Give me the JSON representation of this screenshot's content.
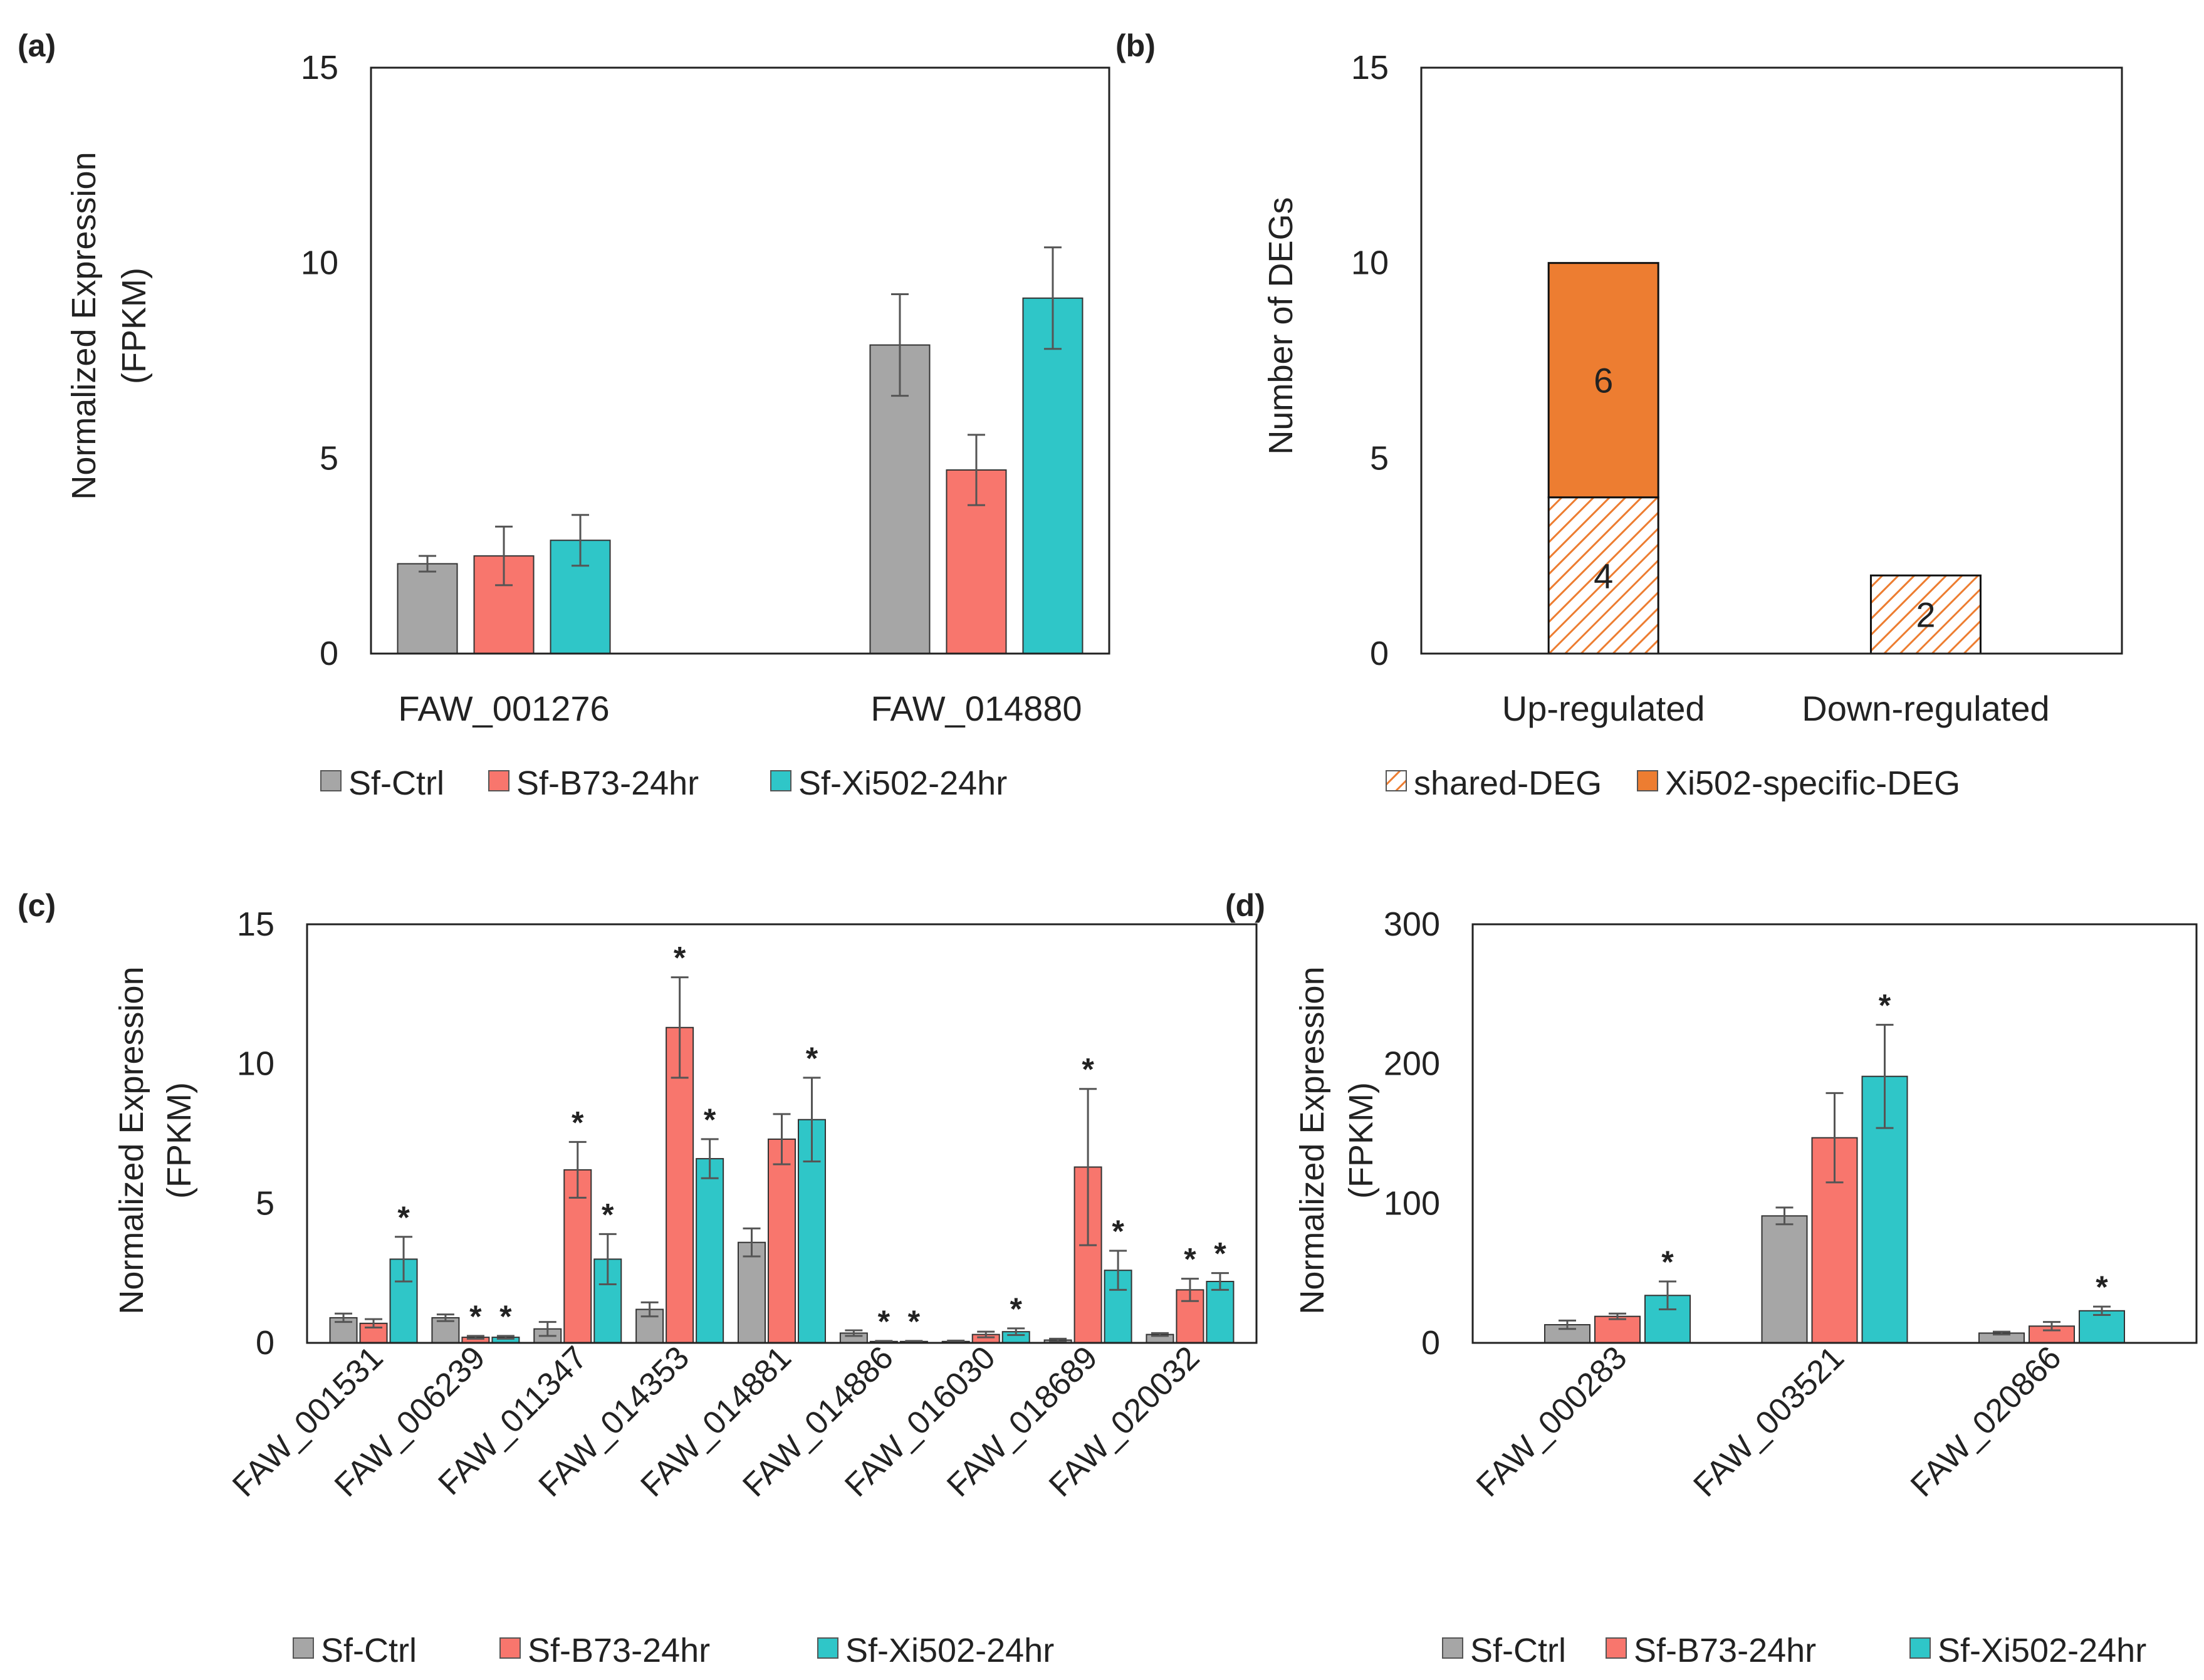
{
  "colors": {
    "ctrl": "#a6a6a6",
    "b73": "#f8766d",
    "xi502": "#2fc6c8",
    "xi_specific": "#ed7d31",
    "shared_hatch": "#ed7d31",
    "frame": "#222222",
    "error_bar": "#555555"
  },
  "chart_data": [
    {
      "id": "a",
      "panel_label": "(a)",
      "type": "bar",
      "ylabel": [
        "Normalized Expression",
        "(FPKM)"
      ],
      "ylim": [
        0,
        15
      ],
      "yticks": [
        0,
        5,
        10,
        15
      ],
      "categories": [
        "FAW_001276",
        "FAW_014880"
      ],
      "series": [
        {
          "name": "Sf-Ctrl",
          "color_key": "ctrl",
          "values": [
            2.3,
            7.9
          ],
          "errors": [
            0.2,
            1.3
          ]
        },
        {
          "name": "Sf-B73-24hr",
          "color_key": "b73",
          "values": [
            2.5,
            4.7
          ],
          "errors": [
            0.75,
            0.9
          ]
        },
        {
          "name": "Sf-Xi502-24hr",
          "color_key": "xi502",
          "values": [
            2.9,
            9.1
          ],
          "errors": [
            0.65,
            1.3
          ]
        }
      ],
      "legend": [
        "Sf-Ctrl",
        "Sf-B73-24hr",
        "Sf-Xi502-24hr"
      ]
    },
    {
      "id": "b",
      "panel_label": "(b)",
      "type": "bar",
      "stacked": true,
      "ylabel": [
        "Number of DEGs"
      ],
      "ylim": [
        0,
        15
      ],
      "yticks": [
        0,
        5,
        10,
        15
      ],
      "categories": [
        "Up-regulated",
        "Down-regulated"
      ],
      "series": [
        {
          "name": "shared-DEG",
          "pattern": "hatch",
          "values": [
            4,
            2
          ],
          "labels": [
            "4",
            "2"
          ]
        },
        {
          "name": "Xi502-specific-DEG",
          "color_key": "xi_specific",
          "values": [
            6,
            0
          ],
          "labels": [
            "6",
            ""
          ]
        }
      ],
      "legend": [
        "shared-DEG",
        "Xi502-specific-DEG"
      ]
    },
    {
      "id": "c",
      "panel_label": "(c)",
      "type": "bar",
      "ylabel": [
        "Normalized Expression",
        "(FPKM)"
      ],
      "ylim": [
        0,
        15
      ],
      "yticks": [
        0,
        5,
        10,
        15
      ],
      "categories": [
        "FAW_001531",
        "FAW_006239",
        "FAW_011347",
        "FAW_014353",
        "FAW_014881",
        "FAW_014886",
        "FAW_016030",
        "FAW_018689",
        "FAW_020032"
      ],
      "series": [
        {
          "name": "Sf-Ctrl",
          "color_key": "ctrl",
          "values": [
            0.9,
            0.9,
            0.5,
            1.2,
            3.6,
            0.35,
            0.05,
            0.1,
            0.3
          ],
          "errors": [
            0.15,
            0.12,
            0.25,
            0.25,
            0.5,
            0.1,
            0.03,
            0.05,
            0.05
          ],
          "sig": [
            false,
            false,
            false,
            false,
            false,
            false,
            false,
            false,
            false
          ]
        },
        {
          "name": "Sf-B73-24hr",
          "color_key": "b73",
          "values": [
            0.7,
            0.2,
            6.2,
            11.3,
            7.3,
            0.05,
            0.3,
            6.3,
            1.9
          ],
          "errors": [
            0.15,
            0.05,
            1.0,
            1.8,
            0.9,
            0.02,
            0.1,
            2.8,
            0.4
          ],
          "sig": [
            false,
            true,
            true,
            true,
            false,
            true,
            false,
            true,
            true
          ]
        },
        {
          "name": "Sf-Xi502-24hr",
          "color_key": "xi502",
          "values": [
            3.0,
            0.2,
            3.0,
            6.6,
            8.0,
            0.05,
            0.4,
            2.6,
            2.2
          ],
          "errors": [
            0.8,
            0.05,
            0.9,
            0.7,
            1.5,
            0.02,
            0.12,
            0.7,
            0.3
          ],
          "sig": [
            true,
            true,
            true,
            true,
            true,
            true,
            true,
            true,
            true
          ]
        }
      ],
      "sig_marker": "*",
      "legend": [
        "Sf-Ctrl",
        "Sf-B73-24hr",
        "Sf-Xi502-24hr"
      ]
    },
    {
      "id": "d",
      "panel_label": "(d)",
      "type": "bar",
      "ylabel": [
        "Normalized Expression",
        "(FPKM)"
      ],
      "ylim": [
        0,
        300
      ],
      "yticks": [
        0,
        100,
        200,
        300
      ],
      "categories": [
        "FAW_000283",
        "FAW_003521",
        "FAW_020866"
      ],
      "series": [
        {
          "name": "Sf-Ctrl",
          "color_key": "ctrl",
          "values": [
            13,
            91,
            7
          ],
          "errors": [
            3,
            6,
            1
          ],
          "sig": [
            false,
            false,
            false
          ]
        },
        {
          "name": "Sf-B73-24hr",
          "color_key": "b73",
          "values": [
            19,
            147,
            12
          ],
          "errors": [
            2,
            32,
            3
          ],
          "sig": [
            false,
            false,
            false
          ]
        },
        {
          "name": "Sf-Xi502-24hr",
          "color_key": "xi502",
          "values": [
            34,
            191,
            23
          ],
          "errors": [
            10,
            37,
            3
          ],
          "sig": [
            true,
            true,
            true
          ]
        }
      ],
      "sig_marker": "*",
      "legend": [
        "Sf-Ctrl",
        "Sf-B73-24hr",
        "Sf-Xi502-24hr"
      ]
    }
  ]
}
